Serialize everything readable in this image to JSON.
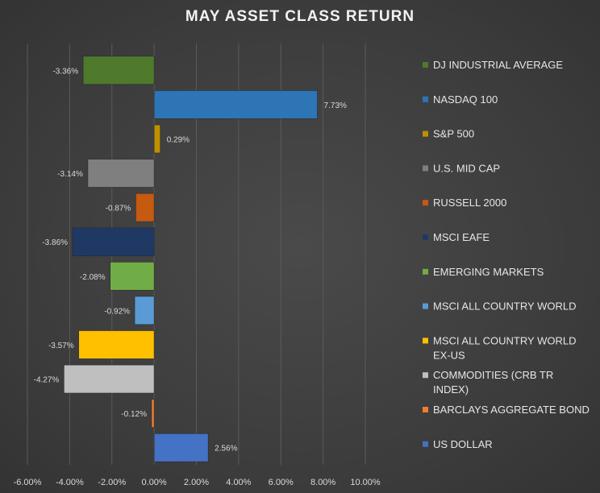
{
  "chart_data": {
    "type": "bar",
    "orientation": "horizontal",
    "title": "MAY ASSET CLASS RETURN",
    "categories": [
      "DJ INDUSTRIAL AVERAGE",
      "NASDAQ 100",
      "S&P 500",
      "U.S. MID CAP",
      "RUSSELL 2000",
      "MSCI EAFE",
      "EMERGING MARKETS",
      "MSCI ALL COUNTRY WORLD",
      "MSCI ALL COUNTRY WORLD EX-US",
      "COMMODITIES (CRB TR INDEX)",
      "BARCLAYS AGGREGATE BOND",
      "US DOLLAR"
    ],
    "legend_lines": [
      [
        "DJ INDUSTRIAL AVERAGE"
      ],
      [
        "NASDAQ 100"
      ],
      [
        "S&P 500"
      ],
      [
        "U.S. MID CAP"
      ],
      [
        "RUSSELL 2000"
      ],
      [
        "MSCI EAFE"
      ],
      [
        "EMERGING MARKETS"
      ],
      [
        "MSCI ALL COUNTRY WORLD"
      ],
      [
        "MSCI ALL COUNTRY WORLD",
        "EX-US"
      ],
      [
        "COMMODITIES (CRB TR",
        "INDEX)"
      ],
      [
        "BARCLAYS AGGREGATE BOND"
      ],
      [
        "US DOLLAR"
      ]
    ],
    "values": [
      -3.36,
      7.73,
      0.29,
      -3.14,
      -0.87,
      -3.86,
      -2.08,
      -0.92,
      -3.57,
      -4.27,
      -0.12,
      2.56
    ],
    "data_labels": [
      "-3.36%",
      "7.73%",
      "0.29%",
      "-3.14%",
      "-0.87%",
      "-3.86%",
      "-2.08%",
      "-0.92%",
      "-3.57%",
      "-4.27%",
      "-0.12%",
      "2.56%"
    ],
    "colors": [
      "#4f7a2c",
      "#2e75b6",
      "#bf9000",
      "#7f7f7f",
      "#c55a11",
      "#203864",
      "#70ad47",
      "#5b9bd5",
      "#ffc000",
      "#bfbfbf",
      "#ed7d31",
      "#4472c4"
    ],
    "x_ticks": [
      "-6.00%",
      "-4.00%",
      "-2.00%",
      "0.00%",
      "2.00%",
      "4.00%",
      "6.00%",
      "8.00%",
      "10.00%"
    ],
    "x_tick_values": [
      -6,
      -4,
      -2,
      0,
      2,
      4,
      6,
      8,
      10
    ],
    "xlim": [
      -6,
      10
    ],
    "grid": true,
    "legend_position": "right",
    "xlabel": "",
    "ylabel": ""
  }
}
